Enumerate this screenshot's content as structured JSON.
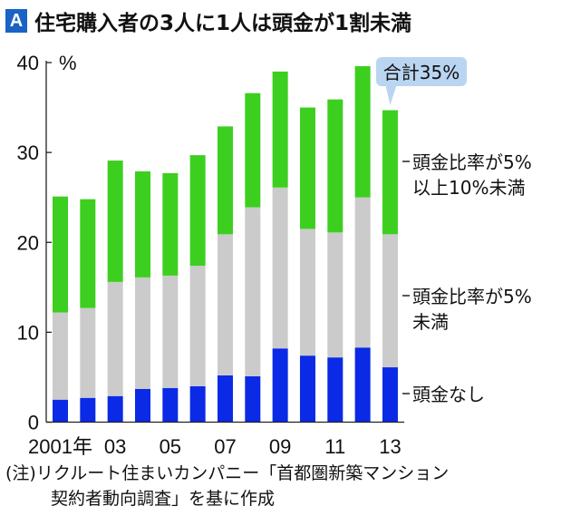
{
  "title": {
    "badge": "A",
    "text": "住宅購入者の3人に1人は頭金が1割未満"
  },
  "chart_data": {
    "type": "bar",
    "stacked": true,
    "title": "住宅購入者の3人に1人は頭金が1割未満",
    "ylabel": "%",
    "ylim": [
      0,
      40
    ],
    "yticks": [
      "0",
      "10",
      "20",
      "30",
      "40"
    ],
    "categories": [
      "2001",
      "2002",
      "2003",
      "2004",
      "2005",
      "2006",
      "2007",
      "2008",
      "2009",
      "2010",
      "2011",
      "2012",
      "2013"
    ],
    "xtick_labels": [
      {
        "index": 0,
        "text": "2001年"
      },
      {
        "index": 2,
        "text": "03"
      },
      {
        "index": 4,
        "text": "05"
      },
      {
        "index": 6,
        "text": "07"
      },
      {
        "index": 8,
        "text": "09"
      },
      {
        "index": 10,
        "text": "11"
      },
      {
        "index": 12,
        "text": "13"
      }
    ],
    "series": [
      {
        "name": "頭金なし",
        "color": "#0a2ae6",
        "values": [
          2.5,
          2.7,
          2.9,
          3.7,
          3.8,
          4.0,
          5.2,
          5.1,
          8.2,
          7.4,
          7.2,
          8.3,
          6.1
        ]
      },
      {
        "name": "頭金比率が5%未満",
        "name_lines": [
          "頭金比率が5%",
          "未満"
        ],
        "color": "#cbcbcb",
        "values": [
          9.7,
          10.0,
          12.7,
          12.4,
          12.5,
          13.4,
          15.7,
          18.8,
          17.9,
          14.1,
          13.9,
          16.7,
          14.8
        ]
      },
      {
        "name": "頭金比率が5%以上10%未満",
        "name_lines": [
          "頭金比率が5%",
          "以上10%未満"
        ],
        "color": "#3dcf1f",
        "values": [
          12.9,
          12.1,
          13.5,
          11.8,
          11.4,
          12.3,
          12.0,
          12.7,
          12.9,
          13.5,
          14.8,
          14.6,
          13.8
        ]
      }
    ],
    "totals": [
      25.1,
      24.8,
      29.1,
      27.9,
      27.7,
      29.7,
      32.9,
      36.6,
      39.0,
      35.0,
      35.9,
      39.6,
      34.7
    ],
    "annotation": {
      "text": "合計35%",
      "target_index": 12,
      "color": "#b9d5f2"
    },
    "grid": false,
    "legend": "right, inline labels"
  },
  "note": {
    "line1": "(注)リクルート住まいカンパニー「首都圏新築マンション",
    "line2": "契約者動向調査」を基に作成"
  }
}
